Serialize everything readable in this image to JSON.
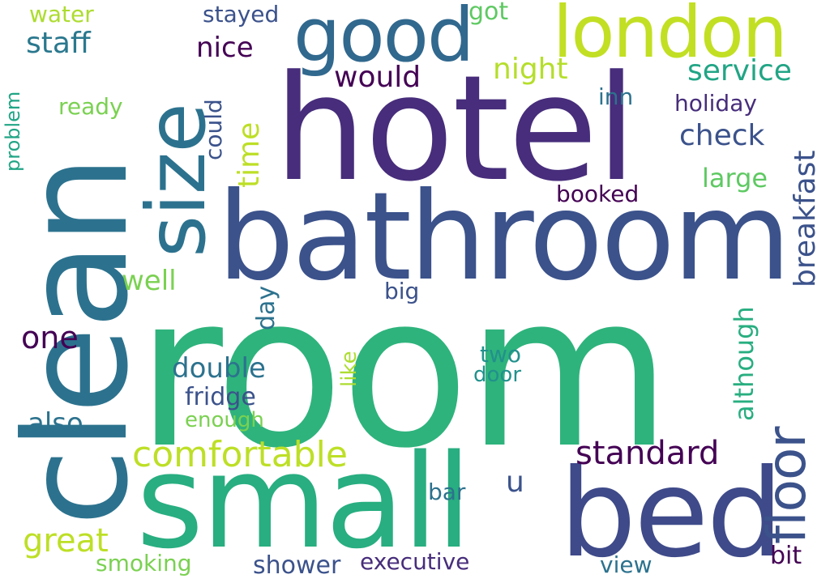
{
  "colors": {
    "background": "#ffffff",
    "palette": [
      "#440154",
      "#472d7b",
      "#3b528b",
      "#2c728e",
      "#21918c",
      "#28ae80",
      "#5ec962",
      "#addc30",
      "#c8e020"
    ]
  },
  "words": [
    "room",
    "hotel",
    "clean",
    "bathroom",
    "small",
    "bed",
    "size",
    "good",
    "london",
    "floor",
    "comfortable",
    "standard",
    "breakfast",
    "check",
    "service",
    "staff",
    "nice",
    "would",
    "night",
    "time",
    "holiday",
    "large",
    "booked",
    "inn",
    "could",
    "stayed",
    "got",
    "water",
    "ready",
    "problem",
    "well",
    "one",
    "double",
    "fridge",
    "also",
    "enough",
    "great",
    "smoking",
    "shower",
    "executive",
    "view",
    "bit",
    "bar",
    "u",
    "two",
    "door",
    "like",
    "big",
    "day",
    "although"
  ]
}
